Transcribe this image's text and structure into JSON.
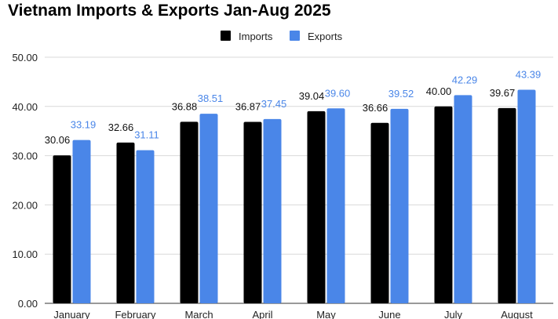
{
  "chart_data": {
    "type": "bar",
    "title": "Vietnam Imports & Exports Jan-Aug 2025",
    "categories": [
      "January",
      "February",
      "March",
      "April",
      "May",
      "June",
      "July",
      "August"
    ],
    "series": [
      {
        "name": "Imports",
        "color": "#000000",
        "values": [
          30.06,
          32.66,
          36.88,
          36.87,
          39.04,
          36.66,
          40.0,
          39.67
        ],
        "labels": [
          "30.06",
          "32.66",
          "36.88",
          "36.87",
          "39.04",
          "36.66",
          "40.00",
          "39.67"
        ]
      },
      {
        "name": "Exports",
        "color": "#4a86e8",
        "values": [
          33.19,
          31.11,
          38.51,
          37.45,
          39.6,
          39.52,
          42.29,
          43.39
        ],
        "labels": [
          "33.19",
          "31.11",
          "38.51",
          "37.45",
          "39.60",
          "39.52",
          "42.29",
          "43.39"
        ]
      }
    ],
    "ylim": [
      0,
      50
    ],
    "yticks": [
      "0.00",
      "10.00",
      "20.00",
      "30.00",
      "40.00",
      "50.00"
    ],
    "grid": true,
    "legend": "top-center",
    "xlabel": "",
    "ylabel": ""
  }
}
